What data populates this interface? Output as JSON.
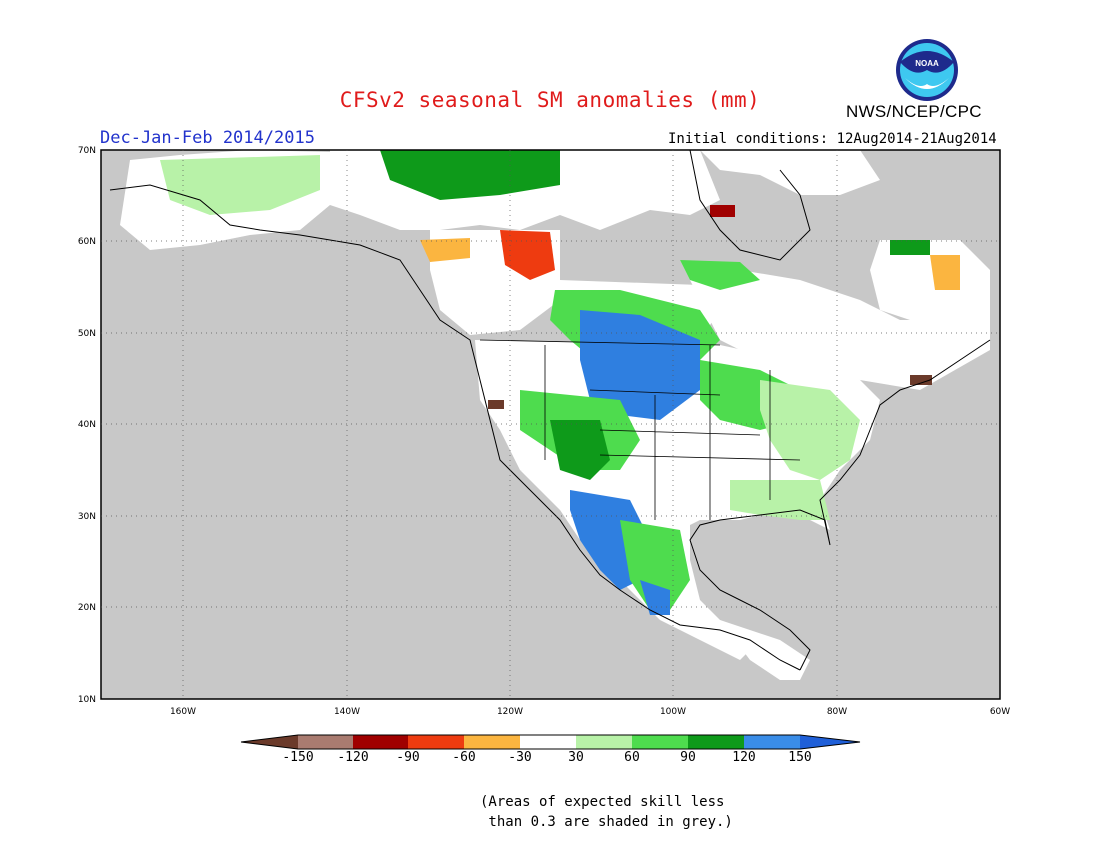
{
  "header": {
    "title": "CFSv2 seasonal SM anomalies (mm)",
    "org": "NWS/NCEP/CPC",
    "logo_text": "NOAA",
    "period": "Dec-Jan-Feb 2014/2015",
    "initial_conditions": "Initial conditions: 12Aug2014-21Aug2014"
  },
  "axes": {
    "lat_labels": [
      "70N",
      "60N",
      "50N",
      "40N",
      "30N",
      "20N",
      "10N"
    ],
    "lon_labels": [
      "160W",
      "140W",
      "120W",
      "100W",
      "80W",
      "60W"
    ]
  },
  "colorbar": {
    "labels": [
      "-150",
      "-120",
      "-90",
      "-60",
      "-30",
      "30",
      "60",
      "90",
      "120",
      "150"
    ],
    "colors": [
      "#6b3a2a",
      "#a97b70",
      "#a00000",
      "#ee3b10",
      "#fbb540",
      "#ffffff",
      "#b8f2a8",
      "#4edc4e",
      "#0e9a1a",
      "#3a8de8",
      "#1f5fd8"
    ]
  },
  "map": {
    "land_color": "#c8c8c8",
    "ocean_color": "#c8c8c8",
    "grey_meaning": "skill less than 0.3"
  },
  "footer": {
    "line1": "(Areas of expected skill less",
    "line2": " than 0.3 are shaded in grey.)"
  }
}
